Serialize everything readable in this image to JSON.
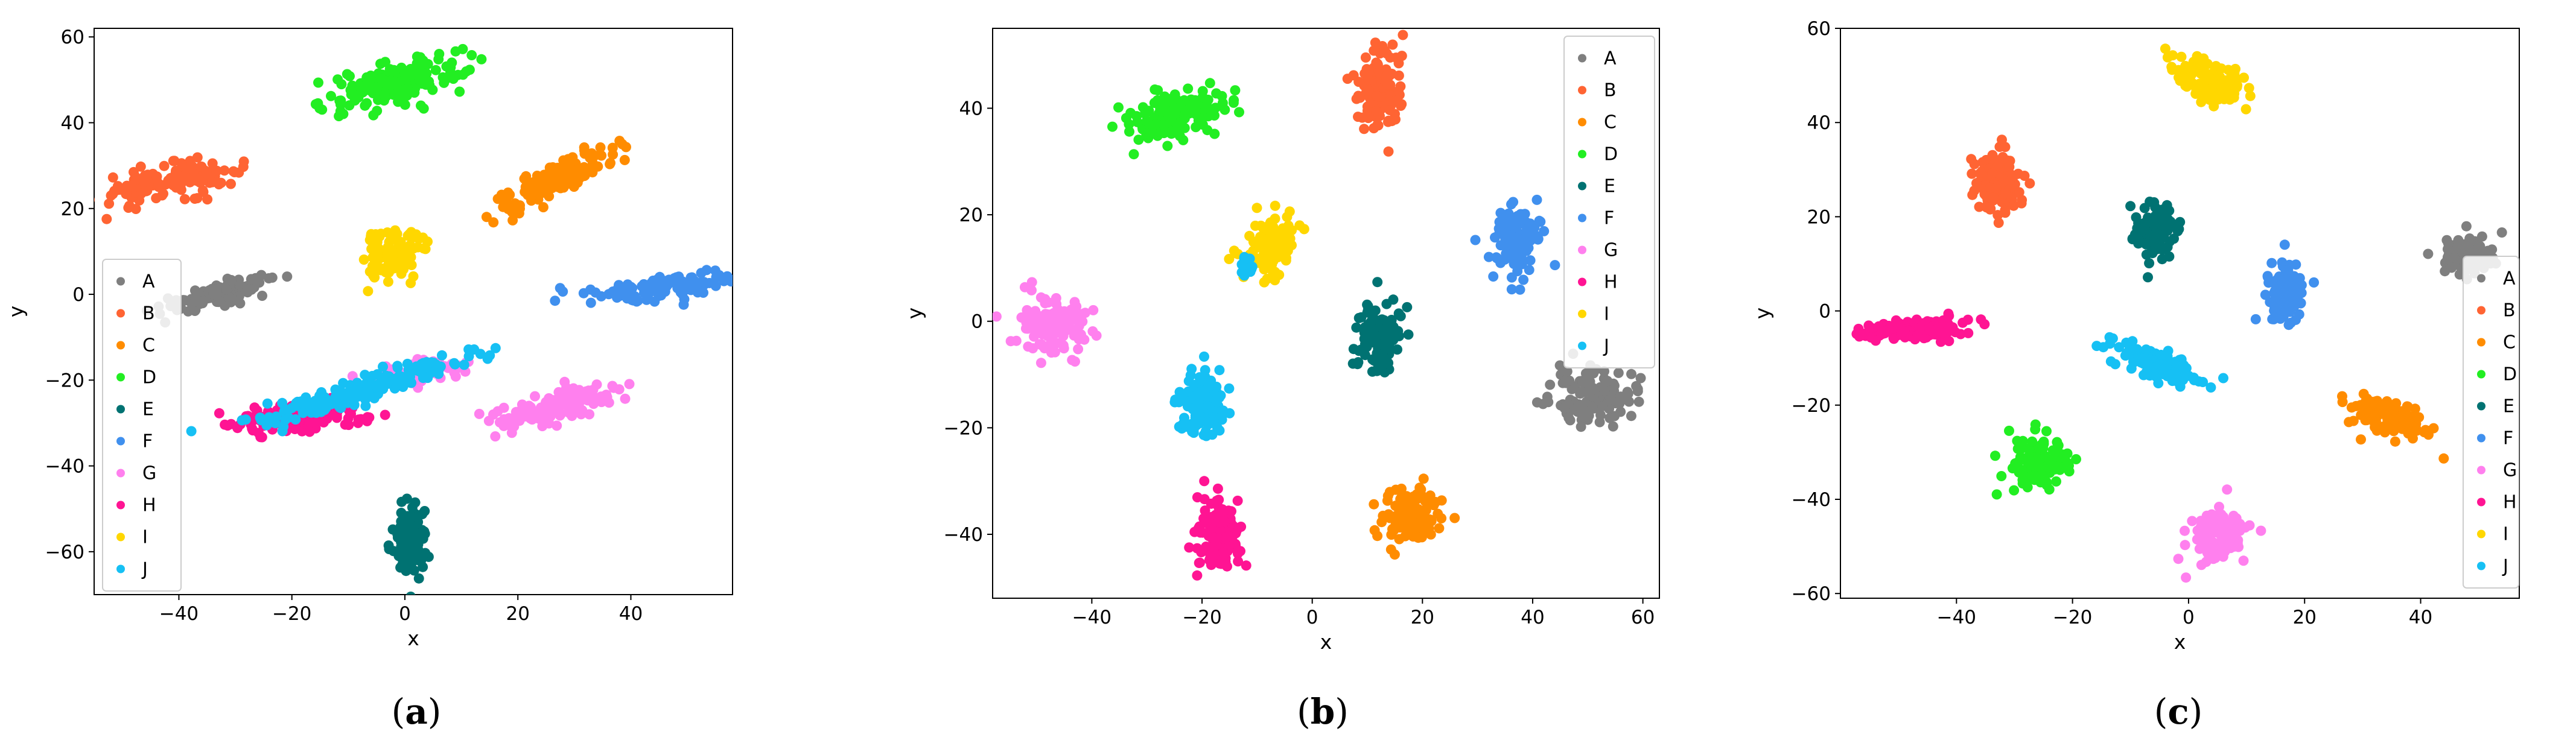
{
  "chart_data": [
    {
      "type": "scatter",
      "caption": "a",
      "xlabel": "x",
      "ylabel": "y",
      "xlim": [
        -55,
        58
      ],
      "ylim": [
        -70,
        62
      ],
      "xticks": [
        -40,
        -20,
        0,
        20,
        40
      ],
      "yticks": [
        -60,
        -40,
        -20,
        0,
        20,
        40,
        60
      ],
      "legend_position": "lower-left",
      "series": [
        {
          "name": "A",
          "color": "#7f7f7f",
          "clusters": [
            {
              "x": -33,
              "y": 0,
              "sx": 5.5,
              "sy": 1.2,
              "angle": 18,
              "n": 120
            }
          ]
        },
        {
          "name": "B",
          "color": "#ff6433",
          "clusters": [
            {
              "x": -42,
              "y": 26,
              "sx": 6.5,
              "sy": 1.8,
              "angle": 16,
              "n": 140
            }
          ]
        },
        {
          "name": "C",
          "color": "#ff8c00",
          "clusters": [
            {
              "x": 27,
              "y": 27,
              "sx": 6.5,
              "sy": 1.6,
              "angle": 34,
              "n": 140
            }
          ]
        },
        {
          "name": "D",
          "color": "#22ee22",
          "clusters": [
            {
              "x": -2,
              "y": 49,
              "sx": 6.5,
              "sy": 2.4,
              "angle": 18,
              "n": 170
            }
          ]
        },
        {
          "name": "E",
          "color": "#007272",
          "clusters": [
            {
              "x": 1,
              "y": -57,
              "sx": 1.5,
              "sy": 4.5,
              "angle": 0,
              "n": 110
            }
          ]
        },
        {
          "name": "F",
          "color": "#4090ee",
          "clusters": [
            {
              "x": 47,
              "y": 2,
              "sx": 6.5,
              "sy": 1.4,
              "angle": 8,
              "n": 120
            }
          ]
        },
        {
          "name": "G",
          "color": "#ff80ee",
          "clusters": [
            {
              "x": 27,
              "y": -26,
              "sx": 5.5,
              "sy": 1.8,
              "angle": 20,
              "n": 130
            },
            {
              "x": 3,
              "y": -18,
              "sx": 4.5,
              "sy": 1.2,
              "angle": 10,
              "n": 60
            }
          ]
        },
        {
          "name": "H",
          "color": "#ff1493",
          "clusters": [
            {
              "x": -19,
              "y": -29,
              "sx": 6,
              "sy": 1.6,
              "angle": 6,
              "n": 150
            }
          ]
        },
        {
          "name": "I",
          "color": "#ffd700",
          "clusters": [
            {
              "x": -2,
              "y": 10,
              "sx": 2.6,
              "sy": 3.2,
              "angle": -30,
              "n": 110
            }
          ]
        },
        {
          "name": "J",
          "color": "#16c0f4",
          "clusters": [
            {
              "x": -7,
              "y": -22,
              "sx": 12,
              "sy": 1.4,
              "angle": 22,
              "n": 180
            }
          ]
        }
      ]
    },
    {
      "type": "scatter",
      "caption": "b",
      "xlabel": "x",
      "ylabel": "y",
      "xlim": [
        -58,
        63
      ],
      "ylim": [
        -52,
        55
      ],
      "xticks": [
        -40,
        -20,
        0,
        20,
        40,
        60
      ],
      "yticks": [
        -40,
        -20,
        0,
        20,
        40
      ],
      "legend_position": "upper-right",
      "series": [
        {
          "name": "A",
          "color": "#7f7f7f",
          "clusters": [
            {
              "x": 51,
              "y": -14,
              "sx": 3.5,
              "sy": 2.5,
              "angle": 0,
              "n": 130
            }
          ]
        },
        {
          "name": "B",
          "color": "#ff6433",
          "clusters": [
            {
              "x": 12,
              "y": 44,
              "sx": 2.2,
              "sy": 4.0,
              "angle": 0,
              "n": 130
            }
          ]
        },
        {
          "name": "C",
          "color": "#ff8c00",
          "clusters": [
            {
              "x": 18,
              "y": -36,
              "sx": 2.5,
              "sy": 2.8,
              "angle": 0,
              "n": 120
            }
          ]
        },
        {
          "name": "D",
          "color": "#22ee22",
          "clusters": [
            {
              "x": -24,
              "y": 39,
              "sx": 5.0,
              "sy": 2.2,
              "angle": 18,
              "n": 150
            }
          ]
        },
        {
          "name": "E",
          "color": "#007272",
          "clusters": [
            {
              "x": 12,
              "y": -3,
              "sx": 2.0,
              "sy": 3.2,
              "angle": 0,
              "n": 110
            }
          ]
        },
        {
          "name": "F",
          "color": "#4090ee",
          "clusters": [
            {
              "x": 37,
              "y": 15,
              "sx": 2.2,
              "sy": 3.2,
              "angle": 0,
              "n": 120
            }
          ]
        },
        {
          "name": "G",
          "color": "#ff80ee",
          "clusters": [
            {
              "x": -47,
              "y": -1,
              "sx": 3.0,
              "sy": 2.8,
              "angle": -20,
              "n": 130
            }
          ]
        },
        {
          "name": "H",
          "color": "#ff1493",
          "clusters": [
            {
              "x": -17,
              "y": -40,
              "sx": 2.0,
              "sy": 3.5,
              "angle": 0,
              "n": 130
            }
          ]
        },
        {
          "name": "I",
          "color": "#ffd700",
          "clusters": [
            {
              "x": -8,
              "y": 14,
              "sx": 2.0,
              "sy": 3.5,
              "angle": -25,
              "n": 110
            }
          ]
        },
        {
          "name": "J",
          "color": "#16c0f4",
          "clusters": [
            {
              "x": -20,
              "y": -16,
              "sx": 2.2,
              "sy": 3.2,
              "angle": -10,
              "n": 120
            },
            {
              "x": -12,
              "y": 11,
              "sx": 0.6,
              "sy": 1.5,
              "angle": 0,
              "n": 15
            }
          ]
        }
      ]
    },
    {
      "type": "scatter",
      "caption": "c",
      "xlabel": "x",
      "ylabel": "y",
      "xlim": [
        -60,
        57
      ],
      "ylim": [
        -61,
        60
      ],
      "xticks": [
        -40,
        -20,
        0,
        20,
        40
      ],
      "yticks": [
        -60,
        -40,
        -20,
        0,
        20,
        40,
        60
      ],
      "legend_position": "right",
      "series": [
        {
          "name": "A",
          "color": "#7f7f7f",
          "clusters": [
            {
              "x": 48,
              "y": 12,
              "sx": 2.5,
              "sy": 2.0,
              "angle": 0,
              "n": 90
            }
          ]
        },
        {
          "name": "B",
          "color": "#ff6433",
          "clusters": [
            {
              "x": -33,
              "y": 27,
              "sx": 2.0,
              "sy": 3.5,
              "angle": 0,
              "n": 130
            }
          ]
        },
        {
          "name": "C",
          "color": "#ff8c00",
          "clusters": [
            {
              "x": 35,
              "y": -23,
              "sx": 3.5,
              "sy": 2.0,
              "angle": -20,
              "n": 130
            }
          ]
        },
        {
          "name": "D",
          "color": "#22ee22",
          "clusters": [
            {
              "x": -26,
              "y": -33,
              "sx": 2.5,
              "sy": 2.8,
              "angle": 0,
              "n": 130
            }
          ]
        },
        {
          "name": "E",
          "color": "#007272",
          "clusters": [
            {
              "x": -6,
              "y": 17,
              "sx": 1.8,
              "sy": 3.0,
              "angle": 0,
              "n": 110
            }
          ]
        },
        {
          "name": "F",
          "color": "#4090ee",
          "clusters": [
            {
              "x": 17,
              "y": 4,
              "sx": 1.6,
              "sy": 3.0,
              "angle": 0,
              "n": 110
            }
          ]
        },
        {
          "name": "G",
          "color": "#ff80ee",
          "clusters": [
            {
              "x": 5,
              "y": -48,
              "sx": 2.5,
              "sy": 3.0,
              "angle": 0,
              "n": 130
            }
          ]
        },
        {
          "name": "H",
          "color": "#ff1493",
          "clusters": [
            {
              "x": -47,
              "y": -4,
              "sx": 4.5,
              "sy": 1.2,
              "angle": 5,
              "n": 140
            }
          ]
        },
        {
          "name": "I",
          "color": "#ffd700",
          "clusters": [
            {
              "x": 4,
              "y": 49,
              "sx": 3.8,
              "sy": 2.0,
              "angle": -30,
              "n": 130
            }
          ]
        },
        {
          "name": "J",
          "color": "#16c0f4",
          "clusters": [
            {
              "x": -6,
              "y": -11,
              "sx": 4.0,
              "sy": 1.3,
              "angle": -25,
              "n": 130
            }
          ]
        }
      ]
    }
  ]
}
